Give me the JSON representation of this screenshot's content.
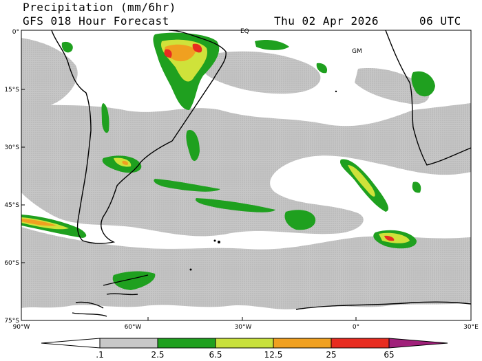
{
  "header": {
    "title": "Precipitation (mm/6hr)",
    "subtitle": "GFS 018 Hour Forecast",
    "date": "Thu 02 Apr 2026",
    "time": "06 UTC"
  },
  "map": {
    "region": "South Atlantic / South America",
    "lat_labels": [
      "0°",
      "15°S",
      "30°S",
      "45°S",
      "60°S",
      "75°S"
    ],
    "lon_labels": [
      "90°W",
      "60°W",
      "30°W",
      "0°",
      "30°E"
    ],
    "map_labels": [
      "EQ",
      "GM"
    ]
  },
  "legend": {
    "colors": [
      "#ffffff",
      "#c8c8c8",
      "#1fa01f",
      "#c8e03c",
      "#f0a020",
      "#e82c20",
      "#a0207a"
    ],
    "ticks": [
      ".1",
      "2.5",
      "6.5",
      "12.5",
      "25",
      "65"
    ]
  }
}
